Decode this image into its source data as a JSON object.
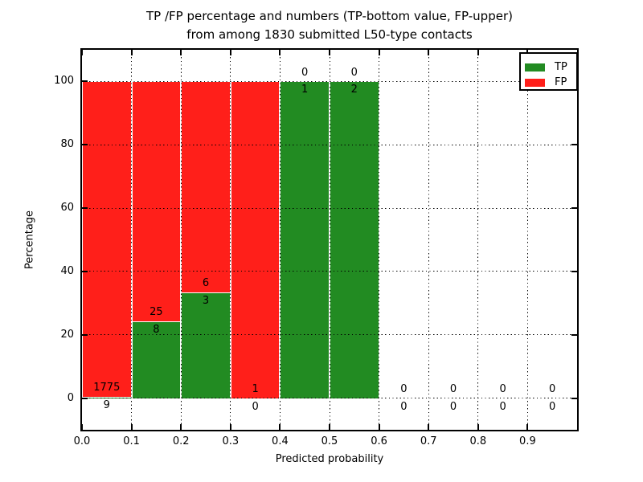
{
  "title": {
    "line1": "TP /FP percentage and numbers (TP-bottom value, FP-upper)",
    "line2": "from among 1830 submitted L50-type contacts"
  },
  "chart_data": {
    "type": "bar",
    "subtype": "stacked-percentage-histogram",
    "title": "TP /FP percentage and numbers (TP-bottom value, FP-upper) from among 1830 submitted L50-type contacts",
    "xlabel": "Predicted probability",
    "ylabel": "Percentage",
    "xlim": [
      0.0,
      1.0
    ],
    "ylim": [
      -10,
      110
    ],
    "bin_width": 0.1,
    "xticks": [
      "0.0",
      "0.1",
      "0.2",
      "0.3",
      "0.4",
      "0.5",
      "0.6",
      "0.7",
      "0.8",
      "0.9"
    ],
    "xtick_values": [
      0.0,
      0.1,
      0.2,
      0.3,
      0.4,
      0.5,
      0.6,
      0.7,
      0.8,
      0.9
    ],
    "yticks": [
      0,
      20,
      40,
      60,
      80,
      100
    ],
    "grid": true,
    "grid_style": "dotted",
    "bar_edge_color": "#ffffff",
    "categories": [
      "0.0-0.1",
      "0.1-0.2",
      "0.2-0.3",
      "0.3-0.4",
      "0.4-0.5",
      "0.5-0.6",
      "0.6-0.7",
      "0.7-0.8",
      "0.8-0.9",
      "0.9-1.0"
    ],
    "series": [
      {
        "name": "TP",
        "color": "#228b22",
        "values": [
          9,
          8,
          3,
          0,
          1,
          2,
          0,
          0,
          0,
          0
        ]
      },
      {
        "name": "FP",
        "color": "#ff1f1a",
        "values": [
          1775,
          25,
          6,
          1,
          0,
          0,
          0,
          0,
          0,
          0
        ]
      }
    ],
    "legend": {
      "position": "upper right",
      "entries": [
        {
          "label": "TP",
          "color": "#228b22"
        },
        {
          "label": "FP",
          "color": "#ff1f1a"
        }
      ]
    }
  }
}
